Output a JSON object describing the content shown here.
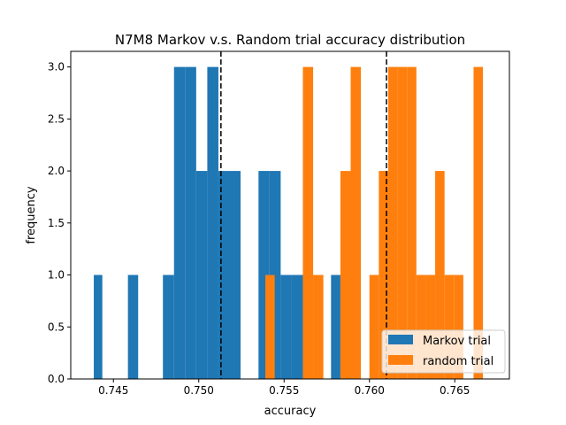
{
  "chart_data": {
    "type": "bar",
    "title": "N7M8 Markov v.s. Random trial accuracy distribution",
    "xlabel": "accuracy",
    "ylabel": "frequency",
    "xlim": [
      0.7425,
      0.7682
    ],
    "ylim": [
      0,
      3.15
    ],
    "x_ticks": [
      "0.745",
      "0.750",
      "0.755",
      "0.760",
      "0.765"
    ],
    "x_tick_values": [
      0.745,
      0.75,
      0.755,
      0.76,
      0.765
    ],
    "y_ticks": [
      "0.0",
      "0.5",
      "1.0",
      "1.5",
      "2.0",
      "2.5",
      "3.0"
    ],
    "y_tick_values": [
      0.0,
      0.5,
      1.0,
      1.5,
      2.0,
      2.5,
      3.0
    ],
    "grid": false,
    "legend_position": "lower-right",
    "vlines": [
      0.7513,
      0.761
    ],
    "series": [
      {
        "name": "Markov trial",
        "color": "#1f77b4",
        "bins": [
          {
            "x0": 0.74385,
            "x1": 0.74435,
            "count": 1
          },
          {
            "x0": 0.74585,
            "x1": 0.74645,
            "count": 1
          },
          {
            "x0": 0.7479,
            "x1": 0.74855,
            "count": 1
          },
          {
            "x0": 0.74855,
            "x1": 0.7492,
            "count": 3
          },
          {
            "x0": 0.7492,
            "x1": 0.74985,
            "count": 3
          },
          {
            "x0": 0.74985,
            "x1": 0.7505,
            "count": 2
          },
          {
            "x0": 0.7505,
            "x1": 0.75115,
            "count": 3
          },
          {
            "x0": 0.75115,
            "x1": 0.7518,
            "count": 2
          },
          {
            "x0": 0.7518,
            "x1": 0.75245,
            "count": 2
          },
          {
            "x0": 0.7535,
            "x1": 0.75415,
            "count": 2
          },
          {
            "x0": 0.75415,
            "x1": 0.7548,
            "count": 2
          },
          {
            "x0": 0.7548,
            "x1": 0.75545,
            "count": 1
          },
          {
            "x0": 0.75545,
            "x1": 0.7561,
            "count": 1
          },
          {
            "x0": 0.75775,
            "x1": 0.7583,
            "count": 1
          }
        ]
      },
      {
        "name": "random trial",
        "color": "#ff7f0e",
        "bins": [
          {
            "x0": 0.7539,
            "x1": 0.75445,
            "count": 1
          },
          {
            "x0": 0.7561,
            "x1": 0.7567,
            "count": 3
          },
          {
            "x0": 0.7567,
            "x1": 0.7573,
            "count": 1
          },
          {
            "x0": 0.7583,
            "x1": 0.7589,
            "count": 2
          },
          {
            "x0": 0.7589,
            "x1": 0.7595,
            "count": 3
          },
          {
            "x0": 0.76,
            "x1": 0.76055,
            "count": 1
          },
          {
            "x0": 0.76055,
            "x1": 0.7611,
            "count": 2
          },
          {
            "x0": 0.7611,
            "x1": 0.76165,
            "count": 3
          },
          {
            "x0": 0.76165,
            "x1": 0.7622,
            "count": 3
          },
          {
            "x0": 0.7622,
            "x1": 0.76275,
            "count": 3
          },
          {
            "x0": 0.76275,
            "x1": 0.7633,
            "count": 1
          },
          {
            "x0": 0.7633,
            "x1": 0.76385,
            "count": 1
          },
          {
            "x0": 0.76385,
            "x1": 0.7644,
            "count": 2
          },
          {
            "x0": 0.7644,
            "x1": 0.76495,
            "count": 1
          },
          {
            "x0": 0.76495,
            "x1": 0.7655,
            "count": 1
          },
          {
            "x0": 0.7661,
            "x1": 0.76665,
            "count": 3
          }
        ]
      }
    ]
  }
}
